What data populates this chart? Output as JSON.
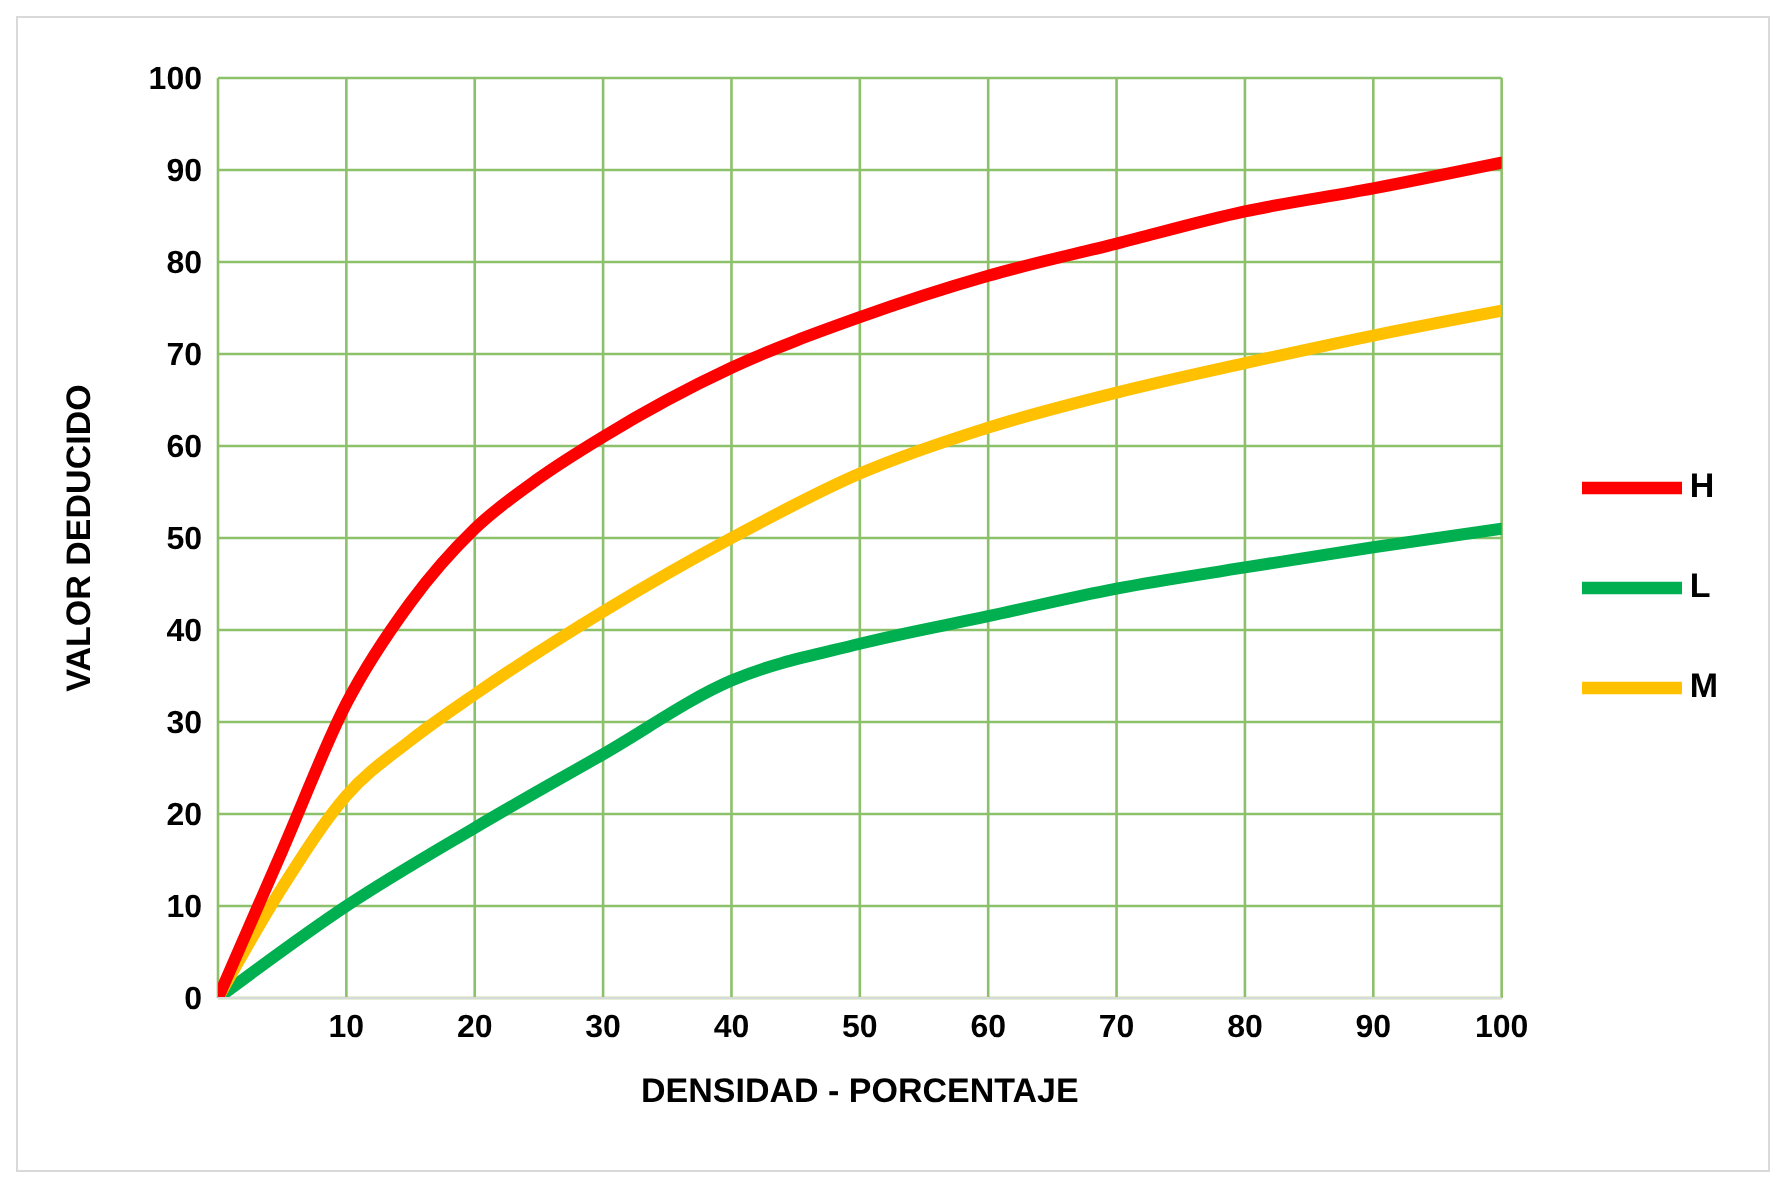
{
  "chart_data": {
    "type": "line",
    "xlabel": "DENSIDAD - PORCENTAJE",
    "ylabel": "VALOR DEDUCIDO",
    "xlim": [
      0,
      100
    ],
    "xticks": [
      {
        "value": 0,
        "label": null
      },
      10,
      20,
      30,
      40,
      50,
      60,
      70,
      80,
      90,
      100
    ],
    "ylim": [
      0,
      100
    ],
    "yticks": [
      0,
      10,
      20,
      30,
      40,
      50,
      60,
      70,
      80,
      90,
      100
    ],
    "grid": true,
    "legend": "right",
    "marker": "none",
    "line_style": "solid",
    "series": [
      {
        "name": "L",
        "color": "#00b050",
        "x": [
          0,
          10,
          20,
          30,
          40,
          50,
          60,
          70,
          80,
          90,
          100
        ],
        "values": [
          0,
          10,
          18.5,
          26.5,
          34.5,
          38.5,
          41.5,
          44.5,
          46.8,
          49,
          51
        ]
      },
      {
        "name": "M",
        "color": "#ffc000",
        "x": [
          0,
          5,
          10,
          15,
          20,
          30,
          40,
          50,
          60,
          70,
          80,
          90,
          100
        ],
        "values": [
          0,
          12,
          22,
          28,
          33,
          42,
          50,
          57,
          62,
          65.8,
          69,
          72,
          74.7
        ]
      },
      {
        "name": "H",
        "color": "#ff0000",
        "x": [
          0,
          5,
          10,
          15,
          20,
          25,
          30,
          40,
          50,
          60,
          70,
          80,
          90,
          100
        ],
        "values": [
          0,
          16,
          32,
          43,
          51,
          56.5,
          61,
          68.5,
          74,
          78.5,
          82,
          85.5,
          88,
          90.8
        ]
      }
    ]
  }
}
